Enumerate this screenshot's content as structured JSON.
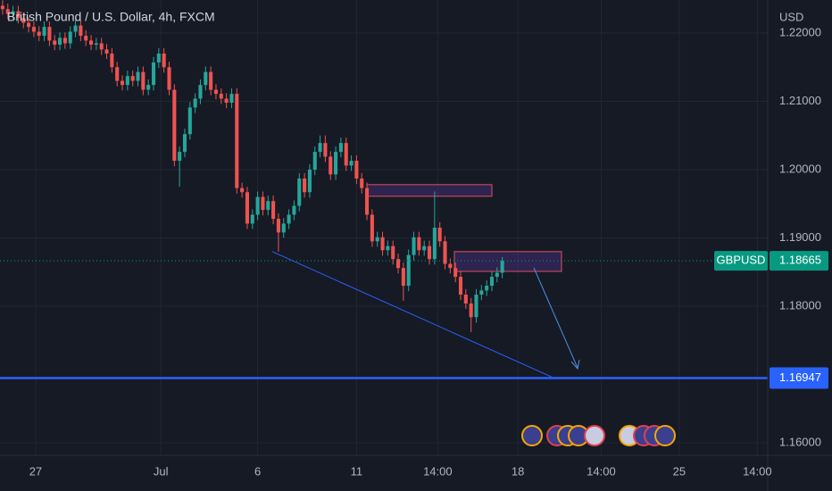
{
  "chart_data": {
    "type": "candlestick",
    "title": "British Pound / U.S. Dollar, 4h, FXCM",
    "currency": "USD",
    "symbol": "GBPUSD",
    "last_price": 1.18665,
    "horizontal_line": 1.16947,
    "up_color": "#26a69a",
    "down_color": "#ef5350",
    "line_color": "#2962ff",
    "grid": true,
    "ylim": [
      1.15817,
      1.22484
    ],
    "yticks": [
      {
        "value": 1.22,
        "label": "1.22000"
      },
      {
        "value": 1.21,
        "label": "1.21000"
      },
      {
        "value": 1.2,
        "label": "1.20000"
      },
      {
        "value": 1.19,
        "label": "1.19000"
      },
      {
        "value": 1.18,
        "label": "1.18000"
      },
      {
        "value": 1.16,
        "label": "1.16000"
      }
    ],
    "xlim": [
      -0.5,
      147
    ],
    "xticks": [
      {
        "value": 6.35,
        "label": "27"
      },
      {
        "value": 30.4,
        "label": "Jul"
      },
      {
        "value": 49,
        "label": "6"
      },
      {
        "value": 68,
        "label": "11"
      },
      {
        "value": 83.6,
        "label": "14:00"
      },
      {
        "value": 99,
        "label": "18"
      },
      {
        "value": 115,
        "label": "14:00"
      },
      {
        "value": 130,
        "label": "25"
      },
      {
        "value": 145,
        "label": "14:00"
      }
    ],
    "zones": [
      {
        "top": 1.1978,
        "bottom": 1.1961
      },
      {
        "top": 1.188,
        "bottom": 1.1851
      }
    ],
    "trendline": [
      1.188,
      1.1694
    ],
    "open": [
      1.224,
      1.2235,
      1.2228,
      1.2232,
      1.2222,
      1.2215,
      1.2209,
      1.2202,
      1.2196,
      1.2209,
      1.2189,
      1.2183,
      1.2193,
      1.2185,
      1.2202,
      1.2211,
      1.2196,
      1.2189,
      1.2183,
      1.2185,
      1.2176,
      1.217,
      1.215,
      1.213,
      1.2124,
      1.2137,
      1.213,
      1.2143,
      1.2117,
      1.2124,
      1.2157,
      1.217,
      1.215,
      1.2117,
      1.2013,
      1.2026,
      1.2052,
      1.2091,
      1.2104,
      1.2124,
      1.2143,
      1.2117,
      1.2111,
      1.2104,
      1.2098,
      1.2111,
      1.1973,
      1.1967,
      1.1921,
      1.1934,
      1.196,
      1.1941,
      1.1954,
      1.1928,
      1.1908,
      1.1921,
      1.1934,
      1.1947,
      1.1987,
      1.1967,
      1.2,
      1.2026,
      1.2039,
      1.2019,
      1.1993,
      1.2026,
      1.2039,
      1.2006,
      1.2013,
      1.1987,
      1.1973,
      1.1934,
      1.1895,
      1.1901,
      1.1882,
      1.1888,
      1.1869,
      1.1856,
      1.183,
      1.1875,
      1.1901,
      1.1882,
      1.1888,
      1.1869,
      1.1915,
      1.1895,
      1.1862,
      1.1856,
      1.1843,
      1.1817,
      1.1804,
      1.1784,
      1.1817,
      1.1823,
      1.183,
      1.1843,
      1.1849
    ],
    "high": [
      1.2248,
      1.2243,
      1.224,
      1.224,
      1.223,
      1.2223,
      1.2217,
      1.221,
      1.2217,
      1.2217,
      1.2197,
      1.2201,
      1.2201,
      1.221,
      1.2219,
      1.2219,
      1.2204,
      1.2197,
      1.2193,
      1.2193,
      1.2184,
      1.2178,
      1.2158,
      1.2138,
      1.2145,
      1.2145,
      1.2151,
      1.2151,
      1.2132,
      1.2165,
      1.2178,
      1.2178,
      1.2158,
      1.2125,
      1.2034,
      1.206,
      1.2099,
      1.2112,
      1.2132,
      1.2151,
      1.2151,
      1.2125,
      1.2119,
      1.2112,
      1.2119,
      1.2119,
      1.1981,
      1.1975,
      1.1942,
      1.1968,
      1.1968,
      1.1962,
      1.1962,
      1.1936,
      1.1929,
      1.1942,
      1.1955,
      1.1995,
      1.1995,
      1.2008,
      1.2034,
      1.205,
      1.205,
      1.2027,
      1.2034,
      1.2047,
      1.2047,
      1.2021,
      1.2021,
      1.1995,
      1.1981,
      1.1942,
      1.1909,
      1.1909,
      1.1896,
      1.1896,
      1.1877,
      1.1864,
      1.1883,
      1.1909,
      1.1909,
      1.1896,
      1.1896,
      1.1968,
      1.1923,
      1.1903,
      1.187,
      1.1864,
      1.1851,
      1.1825,
      1.1812,
      1.1825,
      1.1831,
      1.1838,
      1.1851,
      1.1857,
      1.1872
    ],
    "low": [
      1.2227,
      1.222,
      1.222,
      1.2214,
      1.2207,
      1.2201,
      1.2194,
      1.2188,
      1.2188,
      1.2181,
      1.2175,
      1.2175,
      1.2177,
      1.2177,
      1.2194,
      1.2188,
      1.2181,
      1.2175,
      1.2175,
      1.2168,
      1.2162,
      1.2142,
      1.2122,
      1.2116,
      1.2116,
      1.2122,
      1.2122,
      1.2109,
      1.2109,
      1.2116,
      1.2149,
      1.2142,
      1.2109,
      1.2005,
      1.1975,
      1.2018,
      1.2044,
      1.2083,
      1.2096,
      1.2116,
      1.2109,
      1.2103,
      1.2096,
      1.209,
      1.209,
      1.1965,
      1.1959,
      1.1913,
      1.1913,
      1.1926,
      1.1933,
      1.1933,
      1.192,
      1.188,
      1.19,
      1.1913,
      1.1926,
      1.1939,
      1.1959,
      1.1959,
      1.1992,
      1.2018,
      1.2011,
      1.1985,
      1.1985,
      1.2018,
      1.1998,
      1.1998,
      1.1979,
      1.1965,
      1.1926,
      1.1887,
      1.1887,
      1.1874,
      1.1874,
      1.1861,
      1.1848,
      1.1808,
      1.1822,
      1.1867,
      1.1874,
      1.1874,
      1.1861,
      1.1861,
      1.1887,
      1.1854,
      1.1848,
      1.1835,
      1.1809,
      1.1796,
      1.1762,
      1.1776,
      1.1809,
      1.1815,
      1.1822,
      1.1835,
      1.1841
    ],
    "close": [
      1.2235,
      1.2228,
      1.2232,
      1.2222,
      1.2215,
      1.2209,
      1.2202,
      1.2196,
      1.2209,
      1.2189,
      1.2183,
      1.2193,
      1.2185,
      1.2202,
      1.2211,
      1.2196,
      1.2189,
      1.2183,
      1.2185,
      1.2176,
      1.217,
      1.215,
      1.213,
      1.2124,
      1.2137,
      1.213,
      1.2143,
      1.2117,
      1.2124,
      1.2157,
      1.217,
      1.215,
      1.2117,
      1.2013,
      1.2026,
      1.2052,
      1.2091,
      1.2104,
      1.2124,
      1.2143,
      1.2117,
      1.2111,
      1.2104,
      1.2098,
      1.2111,
      1.1973,
      1.1967,
      1.1921,
      1.1934,
      1.196,
      1.1941,
      1.1954,
      1.1928,
      1.1908,
      1.1921,
      1.1934,
      1.1947,
      1.1987,
      1.1967,
      1.2,
      1.2026,
      1.2039,
      1.2019,
      1.1993,
      1.2026,
      1.2039,
      1.2006,
      1.2013,
      1.1987,
      1.1973,
      1.1934,
      1.1895,
      1.1901,
      1.1882,
      1.1888,
      1.1869,
      1.1856,
      1.183,
      1.1875,
      1.1901,
      1.1882,
      1.1888,
      1.1869,
      1.1915,
      1.1895,
      1.1862,
      1.1856,
      1.1843,
      1.1817,
      1.1804,
      1.1784,
      1.1817,
      1.1823,
      1.183,
      1.1843,
      1.1849,
      1.18665
    ]
  }
}
